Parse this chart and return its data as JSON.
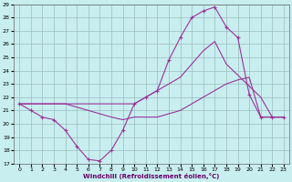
{
  "xlabel": "Windchill (Refroidissement éolien,°C)",
  "background_color": "#c8eef0",
  "grid_color": "#9bbcbd",
  "line_color": "#993399",
  "xlim": [
    -0.5,
    23.5
  ],
  "ylim": [
    17,
    29
  ],
  "xticks": [
    0,
    1,
    2,
    3,
    4,
    5,
    6,
    7,
    8,
    9,
    10,
    11,
    12,
    13,
    14,
    15,
    16,
    17,
    18,
    19,
    20,
    21,
    22,
    23
  ],
  "yticks": [
    17,
    18,
    19,
    20,
    21,
    22,
    23,
    24,
    25,
    26,
    27,
    28,
    29
  ],
  "series1_x": [
    0,
    1,
    2,
    3,
    4,
    5,
    6,
    7,
    8,
    9,
    10,
    11,
    12,
    13,
    14,
    15,
    16,
    17,
    18,
    19,
    20,
    21,
    22,
    23
  ],
  "series1_y": [
    21.5,
    21.0,
    20.5,
    20.3,
    19.5,
    18.3,
    17.3,
    17.2,
    18.0,
    19.5,
    21.5,
    22.0,
    22.5,
    24.8,
    26.5,
    28.0,
    28.5,
    28.8,
    27.3,
    26.5,
    22.2,
    20.5,
    20.5,
    20.5
  ],
  "series2_x": [
    0,
    10,
    14,
    15,
    16,
    17,
    18,
    21,
    22,
    23
  ],
  "series2_y": [
    21.5,
    21.5,
    23.5,
    24.5,
    25.5,
    26.2,
    24.5,
    22.0,
    20.5,
    20.5
  ],
  "series3_x": [
    0,
    4,
    8,
    9,
    10,
    12,
    14,
    16,
    17,
    18,
    19,
    20,
    21,
    22,
    23
  ],
  "series3_y": [
    21.5,
    21.5,
    20.5,
    20.3,
    20.5,
    20.5,
    21.0,
    22.0,
    22.5,
    23.0,
    23.3,
    23.5,
    20.5,
    20.5,
    20.5
  ]
}
